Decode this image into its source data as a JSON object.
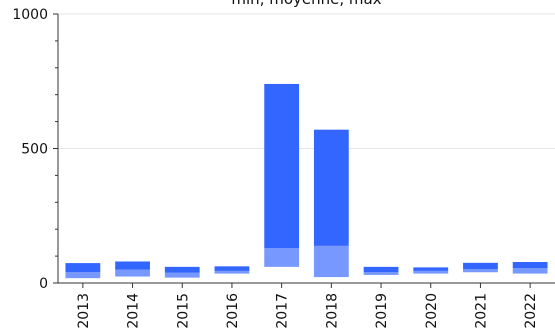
{
  "chart_data": {
    "type": "bar",
    "title": "min, moyenne, max",
    "xlabel": "",
    "ylabel": "",
    "ylim": [
      0,
      1000
    ],
    "yticks": [
      0,
      500,
      1000
    ],
    "grid": true,
    "colors": {
      "lower": "#7799ff",
      "upper": "#3366ff",
      "grid": "#e6e6e6",
      "axis": "#333333"
    },
    "categories": [
      "2013",
      "2014",
      "2015",
      "2016",
      "2017",
      "2018",
      "2019",
      "2020",
      "2021",
      "2022"
    ],
    "series": [
      {
        "key": "min",
        "values": [
          18,
          24,
          20,
          35,
          60,
          22,
          30,
          35,
          40,
          35
        ]
      },
      {
        "key": "mean",
        "values": [
          40,
          50,
          38,
          45,
          130,
          138,
          40,
          45,
          52,
          55
        ]
      },
      {
        "key": "max",
        "values": [
          74,
          80,
          60,
          62,
          740,
          570,
          60,
          58,
          75,
          78
        ]
      }
    ]
  }
}
